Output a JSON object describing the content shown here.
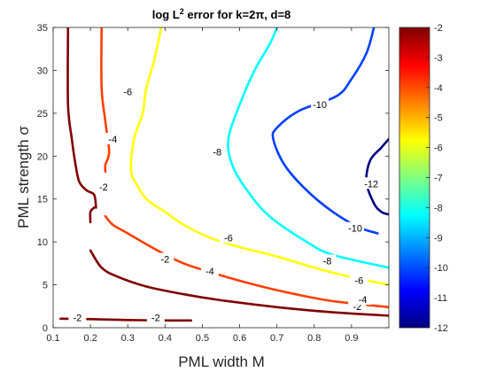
{
  "chart_data": {
    "type": "contour",
    "title": "log L² error for k=2π, d=8",
    "title_parts": {
      "pre": "log L",
      "sup": "2",
      "post": " error for k=2π, d=8"
    },
    "xlabel": "PML width M",
    "ylabel": "PML strength σ",
    "xlim": [
      0.1,
      1.0
    ],
    "ylim": [
      0,
      35
    ],
    "xticks": [
      "0.1",
      "0.2",
      "0.3",
      "0.4",
      "0.5",
      "0.6",
      "0.7",
      "0.8",
      "0.9"
    ],
    "yticks": [
      "0",
      "5",
      "10",
      "15",
      "20",
      "25",
      "30",
      "35"
    ],
    "colorbar": {
      "min": -12,
      "max": -2,
      "ticks": [
        "-2",
        "-3",
        "-4",
        "-5",
        "-6",
        "-7",
        "-8",
        "-9",
        "-10",
        "-11",
        "-12"
      ]
    },
    "grid": false,
    "levels": [
      {
        "level": -2,
        "color": "#800000",
        "segments": [
          [
            [
              0.14,
              35
            ],
            [
              0.14,
              26
            ],
            [
              0.15,
              22
            ],
            [
              0.16,
              19
            ],
            [
              0.17,
              17
            ],
            [
              0.19,
              16
            ],
            [
              0.21,
              15.5
            ],
            [
              0.215,
              14
            ]
          ],
          [
            [
              0.2,
              12.3
            ],
            [
              0.2,
              13.5
            ],
            [
              0.21,
              14
            ]
          ],
          [
            [
              0.2,
              9
            ],
            [
              0.23,
              7
            ],
            [
              0.27,
              6
            ],
            [
              0.35,
              4.8
            ],
            [
              0.45,
              3.9
            ],
            [
              0.55,
              3.2
            ],
            [
              0.7,
              2.4
            ],
            [
              0.85,
              1.8
            ],
            [
              1.0,
              1.4
            ]
          ],
          [
            [
              0.12,
              1.05
            ],
            [
              0.2,
              1.0
            ],
            [
              0.3,
              0.9
            ],
            [
              0.4,
              0.85
            ],
            [
              0.47,
              0.85
            ]
          ]
        ],
        "labels": [
          [
            0.235,
            16.4
          ],
          [
            0.4,
            8
          ],
          [
            0.915,
            2.5
          ],
          [
            0.375,
            1.2
          ],
          [
            0.165,
            1.2
          ]
        ]
      },
      {
        "level": -4,
        "color": "#ff4000",
        "segments": [
          [
            [
              0.23,
              35
            ],
            [
              0.23,
              28
            ],
            [
              0.24,
              24
            ],
            [
              0.25,
              20.5
            ],
            [
              0.24,
              19
            ],
            [
              0.24,
              18.2
            ]
          ],
          [
            [
              0.24,
              13
            ],
            [
              0.26,
              12
            ],
            [
              0.3,
              11
            ],
            [
              0.38,
              9
            ],
            [
              0.45,
              7.5
            ],
            [
              0.55,
              6.1
            ],
            [
              0.65,
              4.9
            ],
            [
              0.75,
              3.9
            ],
            [
              0.85,
              3.1
            ],
            [
              1.0,
              2.4
            ]
          ]
        ],
        "labels": [
          [
            0.26,
            22
          ],
          [
            0.52,
            6.6
          ],
          [
            0.93,
            3.3
          ]
        ]
      },
      {
        "level": -6,
        "color": "#ffff00",
        "segments": [
          [
            [
              0.39,
              35
            ],
            [
              0.37,
              31
            ],
            [
              0.35,
              28
            ],
            [
              0.34,
              25
            ],
            [
              0.32,
              22.5
            ],
            [
              0.31,
              20
            ],
            [
              0.31,
              18
            ],
            [
              0.32,
              17
            ],
            [
              0.35,
              15
            ],
            [
              0.4,
              13.5
            ],
            [
              0.45,
              12
            ],
            [
              0.52,
              10.5
            ],
            [
              0.6,
              9.4
            ],
            [
              0.7,
              8.3
            ],
            [
              0.8,
              7
            ],
            [
              0.9,
              5.9
            ],
            [
              1.0,
              5
            ]
          ]
        ],
        "labels": [
          [
            0.3,
            27.5
          ],
          [
            0.57,
            10.5
          ],
          [
            0.92,
            5.5
          ]
        ]
      },
      {
        "level": -8,
        "color": "#00ffff",
        "segments": [
          [
            [
              0.7,
              35
            ],
            [
              0.68,
              33
            ],
            [
              0.64,
              30
            ],
            [
              0.6,
              26
            ],
            [
              0.57,
              22
            ],
            [
              0.58,
              19
            ],
            [
              0.62,
              16
            ],
            [
              0.68,
              13
            ],
            [
              0.78,
              10
            ],
            [
              0.85,
              8.5
            ],
            [
              1.0,
              7
            ]
          ]
        ],
        "labels": [
          [
            0.54,
            20.5
          ],
          [
            0.835,
            7.8
          ]
        ]
      },
      {
        "level": -10,
        "color": "#0040ff",
        "segments": [
          [
            [
              0.96,
              35
            ],
            [
              0.94,
              32
            ],
            [
              0.9,
              29
            ],
            [
              0.86,
              27
            ],
            [
              0.76,
              25.3
            ],
            [
              0.7,
              23.3
            ],
            [
              0.69,
              22
            ],
            [
              0.72,
              19
            ],
            [
              0.78,
              16
            ],
            [
              0.85,
              13.5
            ],
            [
              0.92,
              11.7
            ],
            [
              0.97,
              11
            ]
          ]
        ],
        "labels": [
          [
            0.815,
            26
          ],
          [
            0.91,
            11.6
          ]
        ]
      },
      {
        "level": -12,
        "color": "#000080",
        "segments": [
          [
            [
              1.0,
              22
            ],
            [
              0.98,
              21
            ],
            [
              0.95,
              19.5
            ],
            [
              0.94,
              17
            ],
            [
              0.96,
              14.5
            ],
            [
              0.98,
              13.5
            ],
            [
              1.0,
              13.2
            ]
          ]
        ],
        "labels": [
          [
            0.953,
            16.8
          ]
        ]
      }
    ]
  }
}
